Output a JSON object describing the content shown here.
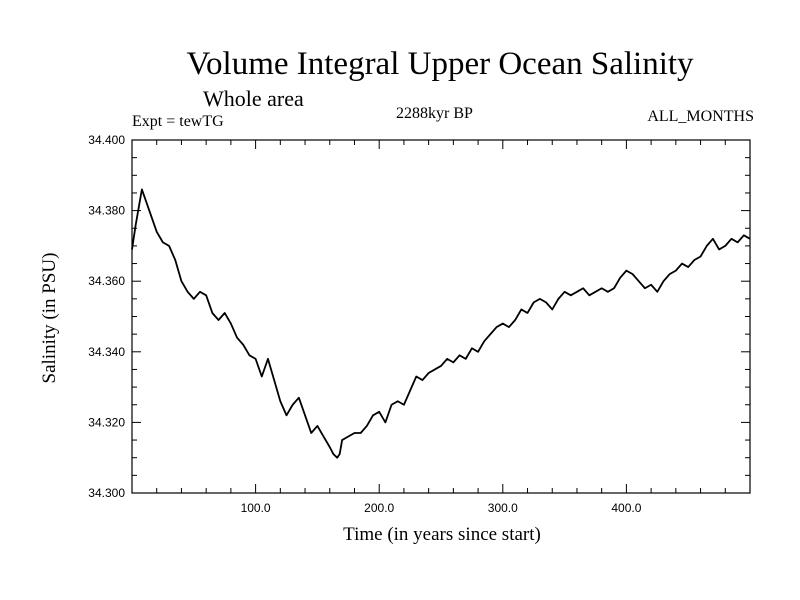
{
  "chart_data": {
    "type": "line",
    "title": "Volume Integral Upper Ocean Salinity",
    "subtitle": "Whole area",
    "expt_label": "Expt = tewTG",
    "period_label": "2288kyr BP",
    "months_label": "ALL_MONTHS",
    "xlabel": "Time (in years since start)",
    "ylabel": "Salinity (in PSU)",
    "xlim": [
      0,
      500
    ],
    "ylim": [
      34.3,
      34.4
    ],
    "x_ticks": [
      100,
      200,
      300,
      400
    ],
    "x_tick_labels": [
      "100.0",
      "200.0",
      "300.0",
      "400.0"
    ],
    "y_ticks": [
      34.3,
      34.32,
      34.34,
      34.36,
      34.38,
      34.4
    ],
    "y_tick_labels": [
      "34.300",
      "34.320",
      "34.340",
      "34.360",
      "34.380",
      "34.400"
    ],
    "series": [
      {
        "name": "Salinity",
        "color": "#000000",
        "x": [
          0,
          3,
          6,
          8,
          10,
          13,
          16,
          20,
          25,
          30,
          35,
          40,
          45,
          50,
          55,
          60,
          65,
          70,
          75,
          80,
          85,
          90,
          95,
          100,
          105,
          110,
          115,
          120,
          125,
          130,
          135,
          140,
          145,
          150,
          155,
          160,
          163,
          166,
          168,
          170,
          175,
          180,
          185,
          190,
          195,
          200,
          205,
          210,
          215,
          220,
          225,
          230,
          235,
          240,
          245,
          250,
          255,
          260,
          265,
          270,
          275,
          280,
          285,
          290,
          295,
          300,
          305,
          310,
          315,
          320,
          325,
          330,
          335,
          340,
          345,
          350,
          355,
          360,
          365,
          370,
          375,
          380,
          385,
          390,
          395,
          400,
          405,
          410,
          415,
          420,
          425,
          430,
          435,
          440,
          445,
          450,
          455,
          460,
          465,
          470,
          475,
          480,
          485,
          490,
          495,
          500
        ],
        "y": [
          34.369,
          34.376,
          34.382,
          34.386,
          34.384,
          34.381,
          34.378,
          34.374,
          34.371,
          34.37,
          34.366,
          34.36,
          34.357,
          34.355,
          34.357,
          34.356,
          34.351,
          34.349,
          34.351,
          34.348,
          34.344,
          34.342,
          34.339,
          34.338,
          34.333,
          34.338,
          34.332,
          34.326,
          34.322,
          34.325,
          34.327,
          34.322,
          34.317,
          34.319,
          34.316,
          34.313,
          34.311,
          34.31,
          34.311,
          34.315,
          34.316,
          34.317,
          34.317,
          34.319,
          34.322,
          34.323,
          34.32,
          34.325,
          34.326,
          34.325,
          34.329,
          34.333,
          34.332,
          34.334,
          34.335,
          34.336,
          34.338,
          34.337,
          34.339,
          34.338,
          34.341,
          34.34,
          34.343,
          34.345,
          34.347,
          34.348,
          34.347,
          34.349,
          34.352,
          34.351,
          34.354,
          34.355,
          34.354,
          34.352,
          34.355,
          34.357,
          34.356,
          34.357,
          34.358,
          34.356,
          34.357,
          34.358,
          34.357,
          34.358,
          34.361,
          34.363,
          34.362,
          34.36,
          34.358,
          34.359,
          34.357,
          34.36,
          34.362,
          34.363,
          34.365,
          34.364,
          34.366,
          34.367,
          34.37,
          34.372,
          34.369,
          34.37,
          34.372,
          34.371,
          34.373,
          34.372
        ]
      }
    ]
  }
}
